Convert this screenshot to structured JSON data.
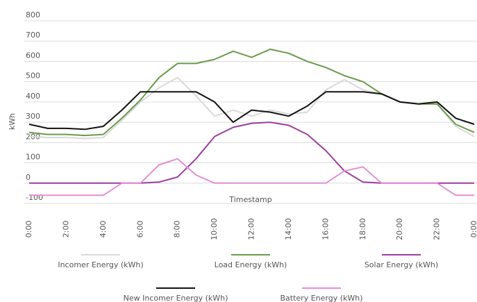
{
  "chart_data": {
    "type": "line",
    "y_label": "kWh",
    "x_label": "Timestamp",
    "categories": [
      "0:00",
      null,
      "2:00",
      null,
      "4:00",
      null,
      "6:00",
      null,
      "8:00",
      null,
      "10:00",
      null,
      "12:00",
      null,
      "14:00",
      null,
      "16:00",
      null,
      "18:00",
      null,
      "20:00",
      null,
      "22:00",
      null,
      "0:00"
    ],
    "ylim": [
      -100,
      800
    ],
    "yticks": [
      -100,
      0,
      100,
      200,
      300,
      400,
      500,
      600,
      700,
      800
    ],
    "grid": true,
    "series": [
      {
        "name": "Incomer Energy (kWh)",
        "color": "#d9d9d9",
        "values": [
          230,
          225,
          225,
          220,
          225,
          310,
          400,
          470,
          520,
          430,
          330,
          360,
          330,
          360,
          340,
          350,
          460,
          510,
          460,
          440,
          400,
          390,
          390,
          280,
          230
        ]
      },
      {
        "name": "Load Energy (kWh)",
        "color": "#6a9a4a",
        "values": [
          250,
          240,
          240,
          235,
          240,
          320,
          410,
          520,
          590,
          590,
          610,
          650,
          620,
          660,
          640,
          600,
          570,
          530,
          500,
          440,
          400,
          390,
          390,
          290,
          250
        ]
      },
      {
        "name": "Solar Energy (kWh)",
        "color": "#9b3d9b",
        "values": [
          0,
          0,
          0,
          0,
          0,
          0,
          0,
          5,
          30,
          120,
          230,
          275,
          295,
          300,
          285,
          240,
          160,
          60,
          5,
          0,
          0,
          0,
          0,
          0,
          0
        ]
      },
      {
        "name": "New Incomer Energy (kWh)",
        "color": "#111111",
        "values": [
          290,
          270,
          270,
          265,
          280,
          360,
          450,
          450,
          450,
          450,
          400,
          300,
          360,
          350,
          330,
          380,
          450,
          450,
          450,
          440,
          400,
          390,
          400,
          320,
          290
        ]
      },
      {
        "name": "Battery Energy (kWh)",
        "color": "#e58ed6",
        "values": [
          -60,
          -60,
          -60,
          -60,
          -60,
          0,
          0,
          90,
          120,
          40,
          0,
          0,
          0,
          0,
          0,
          0,
          0,
          60,
          80,
          0,
          0,
          0,
          0,
          -60,
          -60
        ]
      }
    ]
  }
}
